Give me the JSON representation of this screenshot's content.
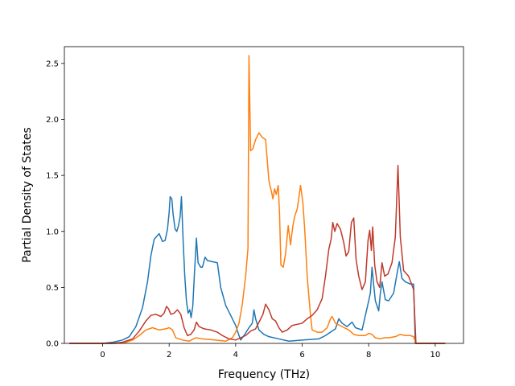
{
  "chart_data": {
    "type": "line",
    "title": "",
    "xlabel": "Frequency (THz)",
    "ylabel": "Partial Density of States",
    "xlim": [
      -1.15,
      10.85
    ],
    "ylim": [
      0,
      2.65
    ],
    "xticks": [
      0,
      2,
      4,
      6,
      8,
      10
    ],
    "xtick_labels": [
      "0",
      "2",
      "4",
      "6",
      "8",
      "10"
    ],
    "yticks": [
      0.0,
      0.5,
      1.0,
      1.5,
      2.0,
      2.5
    ],
    "ytick_labels": [
      "0.0",
      "0.5",
      "1.0",
      "1.5",
      "2.0",
      "2.5"
    ],
    "grid": false,
    "legend": "none",
    "series": [
      {
        "color": "#1f77b4",
        "points": [
          [
            -1.0,
            0
          ],
          [
            0.0,
            0.0
          ],
          [
            0.3,
            0.01
          ],
          [
            0.6,
            0.03
          ],
          [
            0.8,
            0.06
          ],
          [
            1.0,
            0.15
          ],
          [
            1.2,
            0.32
          ],
          [
            1.35,
            0.55
          ],
          [
            1.45,
            0.78
          ],
          [
            1.55,
            0.93
          ],
          [
            1.7,
            0.98
          ],
          [
            1.8,
            0.91
          ],
          [
            1.88,
            0.92
          ],
          [
            1.95,
            1.02
          ],
          [
            2.0,
            1.17
          ],
          [
            2.03,
            1.31
          ],
          [
            2.08,
            1.29
          ],
          [
            2.12,
            1.15
          ],
          [
            2.18,
            1.02
          ],
          [
            2.23,
            1.0
          ],
          [
            2.28,
            1.05
          ],
          [
            2.33,
            1.13
          ],
          [
            2.37,
            1.31
          ],
          [
            2.42,
            0.92
          ],
          [
            2.47,
            0.6
          ],
          [
            2.52,
            0.38
          ],
          [
            2.57,
            0.27
          ],
          [
            2.62,
            0.3
          ],
          [
            2.66,
            0.23
          ],
          [
            2.71,
            0.33
          ],
          [
            2.76,
            0.62
          ],
          [
            2.82,
            0.94
          ],
          [
            2.87,
            0.72
          ],
          [
            2.95,
            0.68
          ],
          [
            3.0,
            0.68
          ],
          [
            3.08,
            0.77
          ],
          [
            3.15,
            0.74
          ],
          [
            3.3,
            0.73
          ],
          [
            3.45,
            0.72
          ],
          [
            3.55,
            0.5
          ],
          [
            3.7,
            0.34
          ],
          [
            3.85,
            0.25
          ],
          [
            4.0,
            0.16
          ],
          [
            4.1,
            0.07
          ],
          [
            4.15,
            0.03
          ],
          [
            4.25,
            0.07
          ],
          [
            4.4,
            0.14
          ],
          [
            4.5,
            0.18
          ],
          [
            4.55,
            0.3
          ],
          [
            4.6,
            0.22
          ],
          [
            4.7,
            0.12
          ],
          [
            4.85,
            0.08
          ],
          [
            5.0,
            0.06
          ],
          [
            5.3,
            0.04
          ],
          [
            5.6,
            0.02
          ],
          [
            6.0,
            0.03
          ],
          [
            6.5,
            0.04
          ],
          [
            6.7,
            0.07
          ],
          [
            7.0,
            0.13
          ],
          [
            7.1,
            0.22
          ],
          [
            7.2,
            0.18
          ],
          [
            7.35,
            0.15
          ],
          [
            7.5,
            0.19
          ],
          [
            7.6,
            0.14
          ],
          [
            7.8,
            0.12
          ],
          [
            8.0,
            0.38
          ],
          [
            8.05,
            0.45
          ],
          [
            8.1,
            0.68
          ],
          [
            8.15,
            0.52
          ],
          [
            8.2,
            0.38
          ],
          [
            8.3,
            0.29
          ],
          [
            8.35,
            0.45
          ],
          [
            8.4,
            0.55
          ],
          [
            8.5,
            0.39
          ],
          [
            8.6,
            0.38
          ],
          [
            8.75,
            0.45
          ],
          [
            8.85,
            0.62
          ],
          [
            8.92,
            0.73
          ],
          [
            9.0,
            0.58
          ],
          [
            9.1,
            0.55
          ],
          [
            9.25,
            0.53
          ],
          [
            9.35,
            0.53
          ],
          [
            9.4,
            0.0
          ],
          [
            10.3,
            0
          ]
        ]
      },
      {
        "color": "#ff7f0e",
        "points": [
          [
            -1.0,
            0
          ],
          [
            0.0,
            0
          ],
          [
            0.4,
            0.0
          ],
          [
            0.7,
            0.01
          ],
          [
            0.9,
            0.03
          ],
          [
            1.1,
            0.07
          ],
          [
            1.3,
            0.12
          ],
          [
            1.5,
            0.14
          ],
          [
            1.7,
            0.12
          ],
          [
            1.9,
            0.13
          ],
          [
            2.0,
            0.14
          ],
          [
            2.1,
            0.12
          ],
          [
            2.2,
            0.05
          ],
          [
            2.4,
            0.03
          ],
          [
            2.6,
            0.02
          ],
          [
            2.8,
            0.05
          ],
          [
            3.0,
            0.04
          ],
          [
            3.4,
            0.03
          ],
          [
            3.7,
            0.02
          ],
          [
            3.9,
            0.05
          ],
          [
            4.0,
            0.1
          ],
          [
            4.1,
            0.18
          ],
          [
            4.2,
            0.35
          ],
          [
            4.3,
            0.6
          ],
          [
            4.37,
            0.85
          ],
          [
            4.4,
            2.57
          ],
          [
            4.45,
            1.72
          ],
          [
            4.52,
            1.74
          ],
          [
            4.6,
            1.82
          ],
          [
            4.7,
            1.88
          ],
          [
            4.8,
            1.84
          ],
          [
            4.9,
            1.82
          ],
          [
            5.0,
            1.45
          ],
          [
            5.08,
            1.35
          ],
          [
            5.12,
            1.29
          ],
          [
            5.17,
            1.38
          ],
          [
            5.22,
            1.33
          ],
          [
            5.28,
            1.41
          ],
          [
            5.32,
            1.15
          ],
          [
            5.36,
            0.7
          ],
          [
            5.43,
            0.68
          ],
          [
            5.5,
            0.8
          ],
          [
            5.58,
            1.05
          ],
          [
            5.65,
            0.88
          ],
          [
            5.72,
            1.05
          ],
          [
            5.78,
            1.14
          ],
          [
            5.85,
            1.2
          ],
          [
            5.9,
            1.3
          ],
          [
            5.95,
            1.41
          ],
          [
            6.02,
            1.26
          ],
          [
            6.08,
            1.0
          ],
          [
            6.15,
            0.6
          ],
          [
            6.25,
            0.25
          ],
          [
            6.3,
            0.12
          ],
          [
            6.45,
            0.1
          ],
          [
            6.6,
            0.1
          ],
          [
            6.75,
            0.14
          ],
          [
            6.85,
            0.22
          ],
          [
            6.9,
            0.24
          ],
          [
            7.0,
            0.18
          ],
          [
            7.2,
            0.15
          ],
          [
            7.4,
            0.12
          ],
          [
            7.55,
            0.08
          ],
          [
            7.7,
            0.07
          ],
          [
            7.9,
            0.07
          ],
          [
            8.0,
            0.09
          ],
          [
            8.1,
            0.08
          ],
          [
            8.2,
            0.05
          ],
          [
            8.35,
            0.04
          ],
          [
            8.45,
            0.05
          ],
          [
            8.6,
            0.05
          ],
          [
            8.8,
            0.06
          ],
          [
            8.95,
            0.08
          ],
          [
            9.1,
            0.07
          ],
          [
            9.25,
            0.07
          ],
          [
            9.35,
            0.06
          ],
          [
            9.42,
            0.0
          ],
          [
            10.3,
            0
          ]
        ]
      },
      {
        "color": "#c0392b",
        "points": [
          [
            -1.0,
            0
          ],
          [
            0.0,
            0.0
          ],
          [
            0.3,
            0.0
          ],
          [
            0.6,
            0.01
          ],
          [
            0.9,
            0.04
          ],
          [
            1.1,
            0.11
          ],
          [
            1.3,
            0.2
          ],
          [
            1.45,
            0.25
          ],
          [
            1.6,
            0.26
          ],
          [
            1.75,
            0.24
          ],
          [
            1.85,
            0.27
          ],
          [
            1.92,
            0.33
          ],
          [
            1.98,
            0.31
          ],
          [
            2.05,
            0.26
          ],
          [
            2.15,
            0.27
          ],
          [
            2.25,
            0.3
          ],
          [
            2.35,
            0.26
          ],
          [
            2.45,
            0.14
          ],
          [
            2.55,
            0.07
          ],
          [
            2.65,
            0.08
          ],
          [
            2.75,
            0.12
          ],
          [
            2.82,
            0.19
          ],
          [
            2.9,
            0.15
          ],
          [
            3.05,
            0.13
          ],
          [
            3.25,
            0.12
          ],
          [
            3.45,
            0.1
          ],
          [
            3.6,
            0.07
          ],
          [
            3.8,
            0.04
          ],
          [
            4.0,
            0.03
          ],
          [
            4.15,
            0.05
          ],
          [
            4.3,
            0.07
          ],
          [
            4.45,
            0.11
          ],
          [
            4.6,
            0.13
          ],
          [
            4.72,
            0.2
          ],
          [
            4.82,
            0.26
          ],
          [
            4.9,
            0.35
          ],
          [
            5.0,
            0.3
          ],
          [
            5.1,
            0.22
          ],
          [
            5.2,
            0.2
          ],
          [
            5.3,
            0.14
          ],
          [
            5.4,
            0.1
          ],
          [
            5.55,
            0.12
          ],
          [
            5.7,
            0.16
          ],
          [
            5.85,
            0.17
          ],
          [
            6.0,
            0.18
          ],
          [
            6.15,
            0.22
          ],
          [
            6.3,
            0.25
          ],
          [
            6.45,
            0.3
          ],
          [
            6.6,
            0.4
          ],
          [
            6.7,
            0.6
          ],
          [
            6.8,
            0.84
          ],
          [
            6.87,
            0.93
          ],
          [
            6.92,
            1.08
          ],
          [
            6.98,
            1.0
          ],
          [
            7.05,
            1.07
          ],
          [
            7.15,
            1.02
          ],
          [
            7.25,
            0.9
          ],
          [
            7.32,
            0.78
          ],
          [
            7.4,
            0.82
          ],
          [
            7.48,
            1.08
          ],
          [
            7.55,
            1.12
          ],
          [
            7.62,
            0.75
          ],
          [
            7.7,
            0.6
          ],
          [
            7.8,
            0.48
          ],
          [
            7.9,
            0.55
          ],
          [
            7.98,
            0.92
          ],
          [
            8.03,
            1.01
          ],
          [
            8.08,
            0.83
          ],
          [
            8.12,
            1.04
          ],
          [
            8.18,
            0.7
          ],
          [
            8.25,
            0.55
          ],
          [
            8.33,
            0.5
          ],
          [
            8.4,
            0.72
          ],
          [
            8.48,
            0.6
          ],
          [
            8.58,
            0.62
          ],
          [
            8.7,
            0.72
          ],
          [
            8.8,
            0.95
          ],
          [
            8.88,
            1.59
          ],
          [
            8.95,
            0.95
          ],
          [
            9.05,
            0.65
          ],
          [
            9.2,
            0.6
          ],
          [
            9.35,
            0.48
          ],
          [
            9.42,
            0.0
          ],
          [
            10.3,
            0
          ]
        ]
      }
    ]
  }
}
